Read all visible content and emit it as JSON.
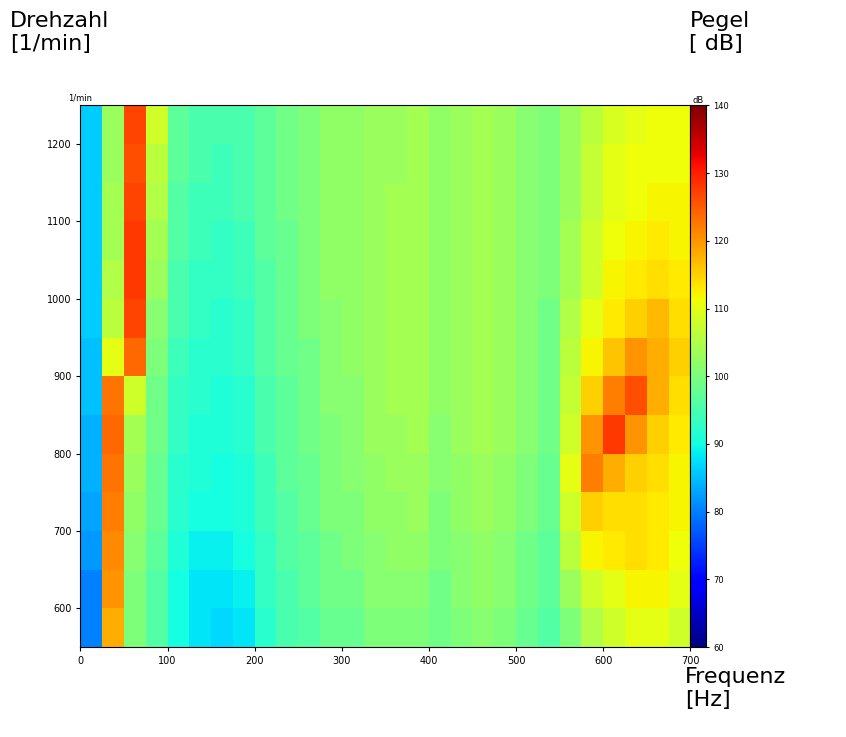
{
  "chart_data": {
    "type": "heatmap",
    "xlabel": "Frequenz\n[Hz]",
    "ylabel": "Drehzahl\n[1/min]",
    "y_unit": "1/min",
    "xlim": [
      0,
      700
    ],
    "ylim": [
      550,
      1250
    ],
    "xticks": [
      0,
      100,
      200,
      300,
      400,
      500,
      600,
      700
    ],
    "yticks": [
      600,
      700,
      800,
      900,
      1000,
      1100,
      1200
    ],
    "x_edges": [
      0,
      25,
      50,
      75,
      100,
      125,
      150,
      175,
      200,
      225,
      250,
      275,
      300,
      325,
      350,
      375,
      400,
      425,
      450,
      475,
      500,
      525,
      550,
      575,
      600,
      625,
      650,
      675,
      700
    ],
    "y_edges": [
      550,
      600,
      650,
      700,
      750,
      800,
      850,
      900,
      950,
      1000,
      1050,
      1100,
      1150,
      1200,
      1250
    ],
    "cells": [
      [
        80,
        118,
        100,
        96,
        90,
        88,
        87,
        88,
        92,
        95,
        96,
        98,
        98,
        100,
        100,
        100,
        99,
        100,
        101,
        100,
        98,
        96,
        100,
        105,
        108,
        110,
        110,
        108
      ],
      [
        80,
        120,
        100,
        96,
        90,
        88,
        88,
        89,
        93,
        95,
        97,
        99,
        99,
        101,
        101,
        101,
        99,
        101,
        102,
        101,
        99,
        97,
        103,
        108,
        110,
        112,
        112,
        110
      ],
      [
        82,
        121,
        101,
        97,
        91,
        89,
        89,
        90,
        93,
        96,
        97,
        99,
        100,
        101,
        102,
        102,
        100,
        101,
        102,
        101,
        99,
        97,
        106,
        112,
        113,
        114,
        113,
        111
      ],
      [
        83,
        122,
        102,
        98,
        92,
        90,
        90,
        91,
        94,
        96,
        98,
        100,
        100,
        102,
        102,
        103,
        100,
        102,
        103,
        102,
        100,
        98,
        108,
        115,
        114,
        114,
        113,
        112
      ],
      [
        84,
        123,
        103,
        98,
        92,
        91,
        90,
        91,
        94,
        97,
        98,
        100,
        101,
        102,
        103,
        103,
        101,
        102,
        103,
        102,
        100,
        98,
        110,
        122,
        118,
        115,
        114,
        112
      ],
      [
        84,
        124,
        104,
        99,
        93,
        91,
        91,
        92,
        95,
        97,
        99,
        100,
        101,
        103,
        103,
        104,
        101,
        103,
        104,
        103,
        101,
        99,
        108,
        120,
        128,
        120,
        115,
        113
      ],
      [
        85,
        123,
        108,
        99,
        93,
        92,
        91,
        92,
        95,
        97,
        99,
        101,
        101,
        103,
        104,
        104,
        102,
        103,
        104,
        103,
        101,
        99,
        107,
        115,
        122,
        126,
        118,
        114
      ],
      [
        85,
        110,
        124,
        100,
        94,
        92,
        92,
        93,
        96,
        98,
        99,
        101,
        102,
        103,
        104,
        104,
        102,
        103,
        104,
        103,
        101,
        99,
        106,
        112,
        116,
        120,
        118,
        115
      ],
      [
        86,
        106,
        127,
        101,
        95,
        93,
        92,
        93,
        96,
        98,
        100,
        101,
        102,
        103,
        104,
        104,
        102,
        103,
        104,
        103,
        101,
        99,
        105,
        110,
        113,
        115,
        117,
        114
      ],
      [
        86,
        105,
        128,
        103,
        95,
        93,
        93,
        94,
        96,
        98,
        100,
        102,
        102,
        103,
        104,
        104,
        102,
        103,
        104,
        103,
        101,
        100,
        104,
        108,
        112,
        113,
        114,
        113
      ],
      [
        86,
        104,
        128,
        104,
        96,
        94,
        93,
        94,
        97,
        98,
        100,
        102,
        102,
        103,
        104,
        104,
        102,
        103,
        104,
        103,
        101,
        100,
        104,
        108,
        111,
        112,
        113,
        112
      ],
      [
        86,
        104,
        127,
        105,
        96,
        94,
        94,
        95,
        97,
        99,
        100,
        102,
        102,
        103,
        104,
        104,
        102,
        103,
        104,
        103,
        101,
        100,
        103,
        107,
        110,
        111,
        112,
        112
      ],
      [
        86,
        103,
        126,
        106,
        97,
        95,
        94,
        95,
        97,
        99,
        100,
        102,
        102,
        103,
        103,
        104,
        102,
        103,
        104,
        103,
        101,
        100,
        103,
        107,
        110,
        111,
        111,
        111
      ],
      [
        86,
        103,
        127,
        108,
        97,
        95,
        95,
        95,
        97,
        99,
        100,
        102,
        102,
        103,
        103,
        104,
        102,
        103,
        104,
        103,
        101,
        100,
        103,
        106,
        109,
        110,
        111,
        111
      ]
    ],
    "colorbar": {
      "label": "Pegel\n[ dB]",
      "unit": "dB",
      "range": [
        60,
        140
      ],
      "ticks": [
        60,
        70,
        80,
        90,
        100,
        110,
        120,
        130,
        140
      ]
    }
  }
}
